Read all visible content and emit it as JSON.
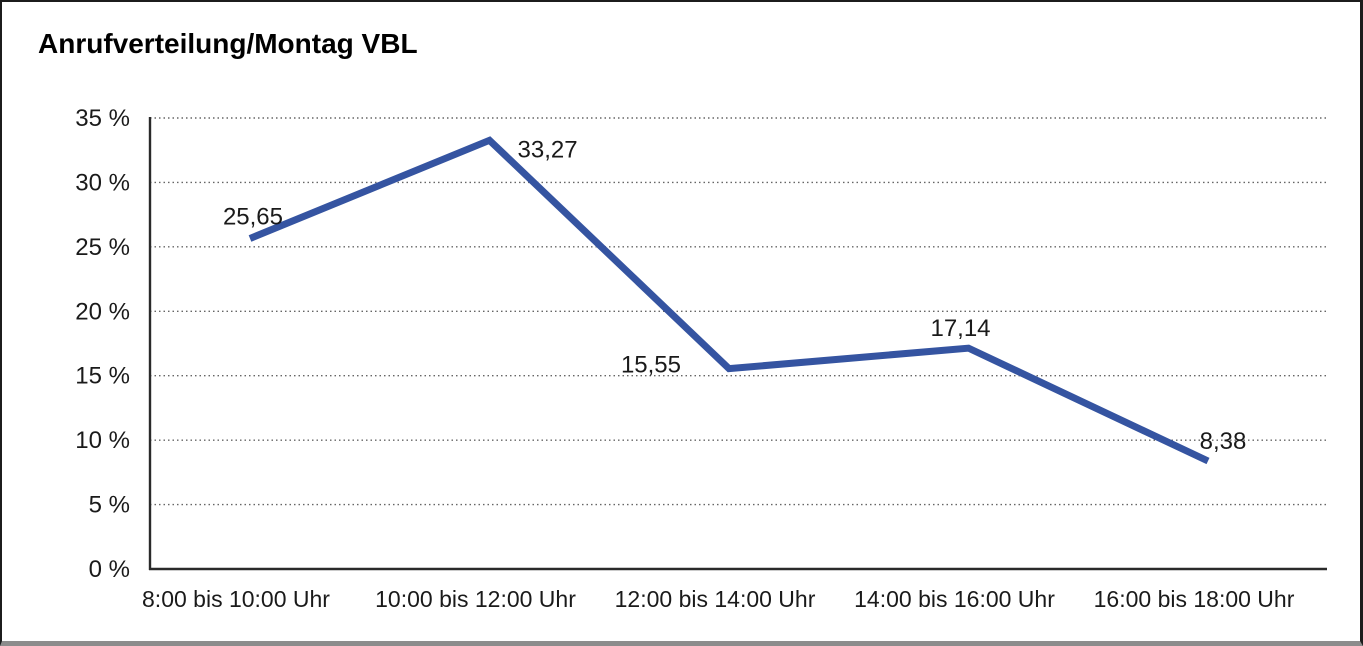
{
  "chart_data": {
    "type": "line",
    "title": "Anrufverteilung/Montag VBL",
    "categories": [
      "8:00 bis 10:00 Uhr",
      "10:00 bis 12:00 Uhr",
      "12:00 bis 14:00 Uhr",
      "14:00 bis 16:00 Uhr",
      "16:00 bis 18:00 Uhr"
    ],
    "values": [
      25.65,
      33.27,
      15.55,
      17.14,
      8.38
    ],
    "value_labels": [
      "25,65",
      "33,27",
      "15,55",
      "17,14",
      "8,38"
    ],
    "y_ticks": [
      "35 %",
      "30 %",
      "25 %",
      "20 %",
      "15 %",
      "10 %",
      "5 %",
      "0 %"
    ],
    "ylim": [
      0,
      35
    ],
    "y_tick_step": 5,
    "xlabel": "",
    "ylabel": "",
    "grid": "horizontal-dotted",
    "legend": "none",
    "line_color": "#3554A1",
    "axis_color": "#2a2a2a",
    "grid_color": "#666666",
    "text_color": "#1a1a1a"
  }
}
